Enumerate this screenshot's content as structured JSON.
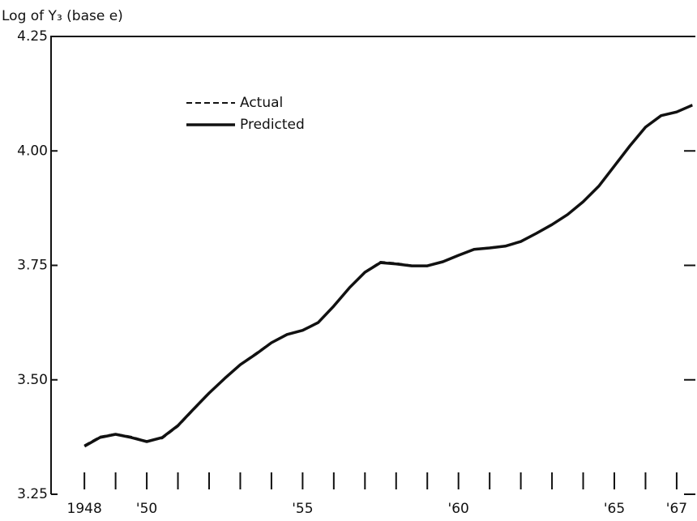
{
  "chart_data": {
    "type": "line",
    "y_label": "Log of Y₃ (base e)",
    "x": [
      1948,
      1948.5,
      1949,
      1949.5,
      1950,
      1950.5,
      1951,
      1951.5,
      1952,
      1952.5,
      1953,
      1953.5,
      1954,
      1954.5,
      1955,
      1955.5,
      1956,
      1956.5,
      1957,
      1957.5,
      1958,
      1958.5,
      1959,
      1959.5,
      1960,
      1960.5,
      1961,
      1961.5,
      1962,
      1962.5,
      1963,
      1963.5,
      1964,
      1964.5,
      1965,
      1965.5,
      1966,
      1966.5,
      1967,
      1967.5
    ],
    "series": [
      {
        "name": "Actual",
        "color": "#111111",
        "dash": true,
        "values": [
          3.357,
          3.376,
          3.382,
          3.376,
          3.366,
          3.372,
          3.398,
          3.434,
          3.47,
          3.504,
          3.534,
          3.558,
          3.582,
          3.6,
          3.607,
          3.624,
          3.66,
          3.7,
          3.736,
          3.758,
          3.755,
          3.75,
          3.748,
          3.757,
          3.771,
          3.786,
          3.789,
          3.793,
          3.801,
          3.819,
          3.84,
          3.862,
          3.888,
          3.922,
          3.966,
          4.012,
          4.053,
          4.076,
          4.086,
          4.101
        ]
      },
      {
        "name": "Predicted",
        "color": "#111111",
        "dash": false,
        "values": [
          3.355,
          3.374,
          3.381,
          3.374,
          3.365,
          3.374,
          3.4,
          3.436,
          3.471,
          3.503,
          3.533,
          3.556,
          3.581,
          3.599,
          3.608,
          3.625,
          3.661,
          3.701,
          3.735,
          3.756,
          3.753,
          3.749,
          3.749,
          3.758,
          3.772,
          3.785,
          3.788,
          3.792,
          3.802,
          3.82,
          3.839,
          3.861,
          3.889,
          3.923,
          3.967,
          4.011,
          4.052,
          4.077,
          4.085,
          4.1
        ]
      }
    ],
    "xlim": [
      1946.93,
      1967.6
    ],
    "xticks": [
      {
        "value": 1948,
        "label": "1948"
      },
      {
        "value": 1950,
        "label": "'50"
      },
      {
        "value": 1955,
        "label": "'55"
      },
      {
        "value": 1960,
        "label": "'60"
      },
      {
        "value": 1965,
        "label": "'65"
      },
      {
        "value": 1967,
        "label": "'67"
      }
    ],
    "minor_xticks": [
      1949,
      1951,
      1952,
      1953,
      1954,
      1956,
      1957,
      1958,
      1959,
      1961,
      1962,
      1963,
      1964,
      1966
    ],
    "ylim": [
      3.25,
      4.25
    ],
    "yticks": [
      {
        "value": 3.25,
        "label": "3.25"
      },
      {
        "value": 3.5,
        "label": "3.50"
      },
      {
        "value": 3.75,
        "label": "3.75"
      },
      {
        "value": 4,
        "label": "4.00"
      },
      {
        "value": 4.25,
        "label": "4.25"
      }
    ],
    "legend": "upper left"
  }
}
